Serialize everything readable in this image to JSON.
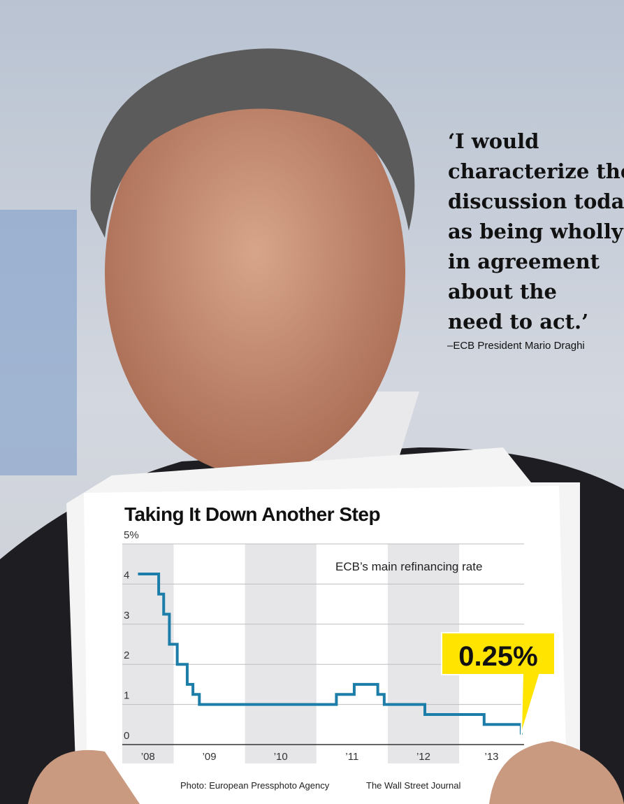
{
  "quote": {
    "lines": [
      "‘I would",
      "characterize the",
      "discussion today",
      "as being wholly",
      "in agreement",
      "about the",
      "need to act.’"
    ],
    "attribution": "–ECB President Mario Draghi"
  },
  "credits": {
    "photo": "Photo: European Pressphoto Agency",
    "source": "The Wall Street Journal"
  },
  "chart_data": {
    "type": "line",
    "step": true,
    "title": "Taking It Down Another Step",
    "x": [
      2008.5,
      2008.79,
      2008.86,
      2008.94,
      2009.05,
      2009.19,
      2009.27,
      2009.36,
      2011.28,
      2011.53,
      2011.86,
      2011.95,
      2012.52,
      2013.35,
      2013.87
    ],
    "series": [
      {
        "name": "ECB’s main refinancing rate",
        "color": "#1c7ea8",
        "values": [
          4.25,
          3.75,
          3.25,
          2.5,
          2,
          1.5,
          1.25,
          1,
          1.25,
          1.5,
          1.25,
          1,
          0.75,
          0.5,
          0.25
        ],
        "value_labels": [
          null,
          null,
          null,
          null,
          null,
          null,
          null,
          null,
          null,
          null,
          null,
          null,
          null,
          null,
          "0.25%"
        ]
      }
    ],
    "xlim": [
      2008.28,
      2013.91
    ],
    "xticks": [
      {
        "value": 2008,
        "label": "’08"
      },
      {
        "value": 2009,
        "label": "’09"
      },
      {
        "value": 2010,
        "label": "’10"
      },
      {
        "value": 2011,
        "label": "’11"
      },
      {
        "value": 2012,
        "label": "’12"
      },
      {
        "value": 2013,
        "label": "’13"
      }
    ],
    "ylim": [
      0,
      5
    ],
    "yticks": [
      0,
      1,
      2,
      3,
      4,
      {
        "value": 5,
        "label": "5%"
      }
    ],
    "grid": true,
    "shaded_years": true
  }
}
